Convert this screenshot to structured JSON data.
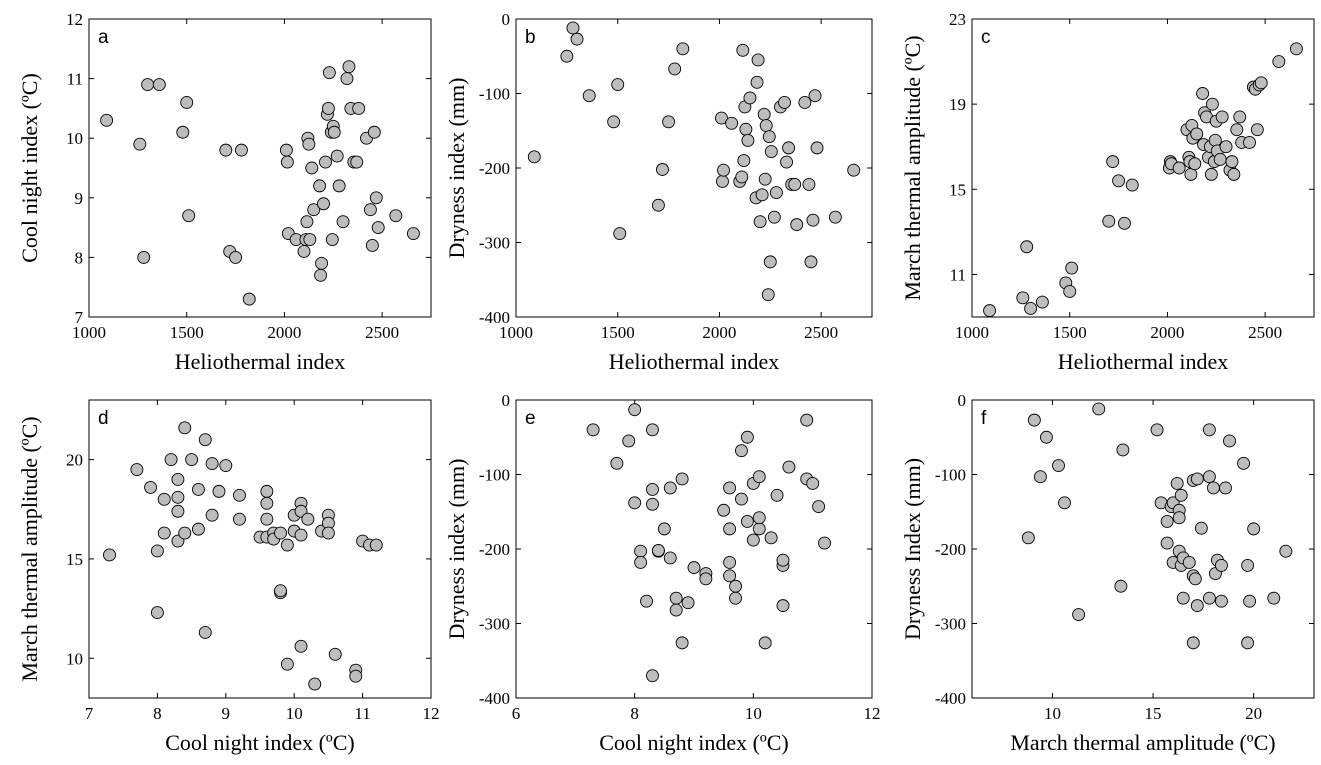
{
  "chart_data": [
    {
      "id": "a",
      "type": "scatter",
      "panel_label": "a",
      "xlabel": "Heliothermal index",
      "ylabel": "Cool night index (ºC)",
      "xlim": [
        1000,
        2750
      ],
      "ylim": [
        7,
        12
      ],
      "xticks": [
        1000,
        1500,
        2000,
        2500
      ],
      "yticks": [
        7,
        8,
        9,
        10,
        11,
        12
      ],
      "points": [
        [
          1090,
          10.3
        ],
        [
          1260,
          9.9
        ],
        [
          1280,
          8.0
        ],
        [
          1300,
          10.9
        ],
        [
          1360,
          10.9
        ],
        [
          1480,
          10.1
        ],
        [
          1500,
          10.6
        ],
        [
          1510,
          8.7
        ],
        [
          1700,
          9.8
        ],
        [
          1720,
          8.1
        ],
        [
          1750,
          8.0
        ],
        [
          1780,
          9.8
        ],
        [
          1820,
          7.3
        ],
        [
          2010,
          9.8
        ],
        [
          2015,
          9.6
        ],
        [
          2020,
          8.4
        ],
        [
          2060,
          8.3
        ],
        [
          2100,
          8.1
        ],
        [
          2110,
          8.3
        ],
        [
          2115,
          8.6
        ],
        [
          2120,
          10.0
        ],
        [
          2125,
          9.9
        ],
        [
          2130,
          8.3
        ],
        [
          2140,
          9.5
        ],
        [
          2150,
          8.8
        ],
        [
          2180,
          9.2
        ],
        [
          2185,
          7.7
        ],
        [
          2190,
          7.9
        ],
        [
          2200,
          8.9
        ],
        [
          2210,
          9.6
        ],
        [
          2220,
          10.4
        ],
        [
          2225,
          10.5
        ],
        [
          2230,
          11.1
        ],
        [
          2240,
          10.1
        ],
        [
          2245,
          8.3
        ],
        [
          2250,
          10.2
        ],
        [
          2255,
          10.1
        ],
        [
          2270,
          9.7
        ],
        [
          2280,
          9.2
        ],
        [
          2300,
          8.6
        ],
        [
          2320,
          11.0
        ],
        [
          2330,
          11.2
        ],
        [
          2340,
          10.5
        ],
        [
          2355,
          9.6
        ],
        [
          2370,
          9.6
        ],
        [
          2380,
          10.5
        ],
        [
          2420,
          10.0
        ],
        [
          2440,
          8.8
        ],
        [
          2450,
          8.2
        ],
        [
          2460,
          10.1
        ],
        [
          2470,
          9.0
        ],
        [
          2480,
          8.5
        ],
        [
          2570,
          8.7
        ],
        [
          2660,
          8.4
        ]
      ]
    },
    {
      "id": "b",
      "type": "scatter",
      "panel_label": "b",
      "xlabel": "Heliothermal index",
      "ylabel": "Dryness index (mm)",
      "xlim": [
        1000,
        2750
      ],
      "ylim": [
        -400,
        0
      ],
      "xticks": [
        1000,
        1500,
        2000,
        2500
      ],
      "yticks": [
        -400,
        -300,
        -200,
        -100,
        0
      ],
      "points": [
        [
          1090,
          -185
        ],
        [
          1250,
          -50
        ],
        [
          1280,
          -12
        ],
        [
          1300,
          -27
        ],
        [
          1360,
          -103
        ],
        [
          1480,
          -138
        ],
        [
          1500,
          -88
        ],
        [
          1510,
          -288
        ],
        [
          1700,
          -250
        ],
        [
          1720,
          -202
        ],
        [
          1750,
          -138
        ],
        [
          1780,
          -67
        ],
        [
          1820,
          -40
        ],
        [
          2010,
          -133
        ],
        [
          2015,
          -218
        ],
        [
          2020,
          -203
        ],
        [
          2060,
          -140
        ],
        [
          2100,
          -218
        ],
        [
          2110,
          -212
        ],
        [
          2115,
          -42
        ],
        [
          2120,
          -190
        ],
        [
          2125,
          -118
        ],
        [
          2130,
          -148
        ],
        [
          2140,
          -163
        ],
        [
          2150,
          -106
        ],
        [
          2180,
          -240
        ],
        [
          2185,
          -85
        ],
        [
          2190,
          -55
        ],
        [
          2200,
          -272
        ],
        [
          2210,
          -236
        ],
        [
          2220,
          -128
        ],
        [
          2225,
          -215
        ],
        [
          2230,
          -143
        ],
        [
          2240,
          -370
        ],
        [
          2245,
          -158
        ],
        [
          2250,
          -326
        ],
        [
          2255,
          -178
        ],
        [
          2270,
          -266
        ],
        [
          2280,
          -233
        ],
        [
          2300,
          -118
        ],
        [
          2320,
          -112
        ],
        [
          2330,
          -192
        ],
        [
          2340,
          -173
        ],
        [
          2355,
          -222
        ],
        [
          2370,
          -222
        ],
        [
          2380,
          -276
        ],
        [
          2420,
          -112
        ],
        [
          2440,
          -222
        ],
        [
          2450,
          -326
        ],
        [
          2460,
          -270
        ],
        [
          2470,
          -103
        ],
        [
          2480,
          -173
        ],
        [
          2570,
          -266
        ],
        [
          2660,
          -203
        ]
      ]
    },
    {
      "id": "c",
      "type": "scatter",
      "panel_label": "c",
      "xlabel": "Heliothermal index",
      "ylabel": "March thermal amplitude (ºC)",
      "xlim": [
        1000,
        2750
      ],
      "ylim": [
        9,
        23
      ],
      "xticks": [
        1000,
        1500,
        2000,
        2500
      ],
      "yticks": [
        11,
        15,
        19,
        23
      ],
      "points": [
        [
          1090,
          9.3
        ],
        [
          1260,
          9.9
        ],
        [
          1280,
          12.3
        ],
        [
          1300,
          9.4
        ],
        [
          1360,
          9.7
        ],
        [
          1480,
          10.6
        ],
        [
          1500,
          10.2
        ],
        [
          1510,
          11.3
        ],
        [
          1700,
          13.5
        ],
        [
          1720,
          16.3
        ],
        [
          1750,
          15.4
        ],
        [
          1780,
          13.4
        ],
        [
          1820,
          15.2
        ],
        [
          2010,
          16.0
        ],
        [
          2015,
          16.3
        ],
        [
          2020,
          16.2
        ],
        [
          2060,
          16.0
        ],
        [
          2100,
          17.8
        ],
        [
          2110,
          16.5
        ],
        [
          2115,
          16.3
        ],
        [
          2120,
          15.7
        ],
        [
          2125,
          18.0
        ],
        [
          2130,
          17.4
        ],
        [
          2140,
          16.2
        ],
        [
          2150,
          17.6
        ],
        [
          2180,
          19.5
        ],
        [
          2185,
          17.1
        ],
        [
          2190,
          18.6
        ],
        [
          2200,
          18.4
        ],
        [
          2210,
          16.5
        ],
        [
          2220,
          17.0
        ],
        [
          2225,
          15.7
        ],
        [
          2230,
          19.0
        ],
        [
          2240,
          16.3
        ],
        [
          2245,
          17.3
        ],
        [
          2250,
          18.2
        ],
        [
          2255,
          16.8
        ],
        [
          2270,
          16.4
        ],
        [
          2280,
          18.4
        ],
        [
          2300,
          17.0
        ],
        [
          2320,
          15.9
        ],
        [
          2330,
          16.3
        ],
        [
          2340,
          15.7
        ],
        [
          2355,
          17.8
        ],
        [
          2370,
          18.4
        ],
        [
          2380,
          17.2
        ],
        [
          2420,
          17.2
        ],
        [
          2440,
          19.8
        ],
        [
          2450,
          19.7
        ],
        [
          2460,
          17.8
        ],
        [
          2470,
          19.9
        ],
        [
          2480,
          20.0
        ],
        [
          2570,
          21.0
        ],
        [
          2660,
          21.6
        ]
      ]
    },
    {
      "id": "d",
      "type": "scatter",
      "panel_label": "d",
      "xlabel": "Cool night index (ºC)",
      "ylabel": "March thermal amplitude (ºC)",
      "xlim": [
        7,
        12
      ],
      "ylim": [
        8,
        23
      ],
      "xticks": [
        7,
        8,
        9,
        10,
        11,
        12
      ],
      "yticks": [
        10,
        15,
        20
      ],
      "points": [
        [
          7.3,
          15.2
        ],
        [
          7.7,
          19.5
        ],
        [
          7.9,
          18.6
        ],
        [
          8.0,
          15.4
        ],
        [
          8.0,
          12.3
        ],
        [
          8.1,
          18.0
        ],
        [
          8.1,
          16.3
        ],
        [
          8.2,
          20.0
        ],
        [
          8.3,
          15.9
        ],
        [
          8.3,
          17.4
        ],
        [
          8.3,
          18.1
        ],
        [
          8.3,
          19.0
        ],
        [
          8.4,
          21.6
        ],
        [
          8.4,
          16.3
        ],
        [
          8.5,
          20.0
        ],
        [
          8.6,
          18.5
        ],
        [
          8.6,
          16.5
        ],
        [
          8.7,
          11.3
        ],
        [
          8.7,
          21.0
        ],
        [
          8.8,
          19.8
        ],
        [
          8.8,
          17.2
        ],
        [
          8.9,
          18.4
        ],
        [
          9.0,
          19.7
        ],
        [
          9.2,
          18.2
        ],
        [
          9.2,
          17.0
        ],
        [
          9.5,
          16.1
        ],
        [
          9.6,
          18.4
        ],
        [
          9.6,
          17.8
        ],
        [
          9.6,
          17.0
        ],
        [
          9.6,
          16.1
        ],
        [
          9.7,
          16.3
        ],
        [
          9.7,
          16.0
        ],
        [
          9.8,
          13.3
        ],
        [
          9.8,
          13.4
        ],
        [
          9.8,
          16.3
        ],
        [
          9.9,
          15.7
        ],
        [
          9.9,
          9.7
        ],
        [
          10.0,
          17.2
        ],
        [
          10.0,
          16.4
        ],
        [
          10.1,
          17.8
        ],
        [
          10.1,
          17.4
        ],
        [
          10.1,
          16.2
        ],
        [
          10.1,
          10.6
        ],
        [
          10.2,
          17.0
        ],
        [
          10.3,
          8.7
        ],
        [
          10.4,
          16.4
        ],
        [
          10.5,
          17.2
        ],
        [
          10.5,
          16.8
        ],
        [
          10.5,
          16.3
        ],
        [
          10.6,
          10.2
        ],
        [
          10.9,
          9.4
        ],
        [
          10.9,
          9.1
        ],
        [
          11.0,
          15.9
        ],
        [
          11.1,
          15.7
        ],
        [
          11.2,
          15.7
        ]
      ]
    },
    {
      "id": "e",
      "type": "scatter",
      "panel_label": "e",
      "xlabel": "Cool night index (ºC)",
      "ylabel": "Dryness index (mm)",
      "xlim": [
        6,
        12
      ],
      "ylim": [
        -400,
        0
      ],
      "xticks": [
        6,
        8,
        10,
        12
      ],
      "yticks": [
        -400,
        -300,
        -200,
        -100,
        0
      ],
      "points": [
        [
          7.3,
          -40
        ],
        [
          7.7,
          -85
        ],
        [
          7.9,
          -55
        ],
        [
          8.0,
          -13
        ],
        [
          8.0,
          -138
        ],
        [
          8.1,
          -203
        ],
        [
          8.1,
          -218
        ],
        [
          8.2,
          -270
        ],
        [
          8.3,
          -370
        ],
        [
          8.3,
          -140
        ],
        [
          8.3,
          -40
        ],
        [
          8.3,
          -120
        ],
        [
          8.4,
          -203
        ],
        [
          8.4,
          -202
        ],
        [
          8.5,
          -173
        ],
        [
          8.6,
          -118
        ],
        [
          8.6,
          -212
        ],
        [
          8.7,
          -266
        ],
        [
          8.7,
          -282
        ],
        [
          8.8,
          -106
        ],
        [
          8.8,
          -326
        ],
        [
          8.9,
          -272
        ],
        [
          9.0,
          -225
        ],
        [
          9.2,
          -233
        ],
        [
          9.2,
          -240
        ],
        [
          9.5,
          -148
        ],
        [
          9.6,
          -118
        ],
        [
          9.6,
          -173
        ],
        [
          9.6,
          -218
        ],
        [
          9.6,
          -236
        ],
        [
          9.7,
          -266
        ],
        [
          9.7,
          -250
        ],
        [
          9.8,
          -133
        ],
        [
          9.8,
          -68
        ],
        [
          9.9,
          -50
        ],
        [
          9.9,
          -163
        ],
        [
          10.0,
          -188
        ],
        [
          10.0,
          -112
        ],
        [
          10.1,
          -173
        ],
        [
          10.1,
          -158
        ],
        [
          10.1,
          -103
        ],
        [
          10.2,
          -326
        ],
        [
          10.3,
          -185
        ],
        [
          10.4,
          -128
        ],
        [
          10.5,
          -222
        ],
        [
          10.5,
          -215
        ],
        [
          10.5,
          -276
        ],
        [
          10.6,
          -90
        ],
        [
          10.9,
          -27
        ],
        [
          10.9,
          -106
        ],
        [
          11.0,
          -112
        ],
        [
          11.1,
          -143
        ],
        [
          11.2,
          -192
        ]
      ]
    },
    {
      "id": "f",
      "type": "scatter",
      "panel_label": "f",
      "xlabel": "March thermal amplitude (ºC)",
      "ylabel": "Dryness Index (mm)",
      "xlim": [
        6,
        23
      ],
      "ylim": [
        -400,
        0
      ],
      "xticks": [
        10,
        15,
        20
      ],
      "yticks": [
        -400,
        -300,
        -200,
        -100,
        0
      ],
      "points": [
        [
          8.8,
          -185
        ],
        [
          9.1,
          -27
        ],
        [
          9.4,
          -103
        ],
        [
          9.7,
          -50
        ],
        [
          10.3,
          -88
        ],
        [
          10.6,
          -138
        ],
        [
          11.3,
          -288
        ],
        [
          12.3,
          -12
        ],
        [
          13.4,
          -250
        ],
        [
          13.5,
          -67
        ],
        [
          15.2,
          -40
        ],
        [
          15.4,
          -138
        ],
        [
          15.7,
          -192
        ],
        [
          15.7,
          -163
        ],
        [
          15.9,
          -143
        ],
        [
          16.0,
          -218
        ],
        [
          16.0,
          -138
        ],
        [
          16.2,
          -112
        ],
        [
          16.3,
          -148
        ],
        [
          16.3,
          -158
        ],
        [
          16.3,
          -203
        ],
        [
          16.4,
          -128
        ],
        [
          16.4,
          -222
        ],
        [
          16.5,
          -212
        ],
        [
          16.5,
          -266
        ],
        [
          16.8,
          -218
        ],
        [
          17.0,
          -236
        ],
        [
          17.0,
          -326
        ],
        [
          17.0,
          -108
        ],
        [
          17.1,
          -240
        ],
        [
          17.2,
          -276
        ],
        [
          17.2,
          -106
        ],
        [
          17.4,
          -172
        ],
        [
          17.8,
          -40
        ],
        [
          17.8,
          -103
        ],
        [
          17.8,
          -266
        ],
        [
          18.0,
          -118
        ],
        [
          18.1,
          -233
        ],
        [
          18.2,
          -215
        ],
        [
          18.4,
          -222
        ],
        [
          18.4,
          -270
        ],
        [
          18.6,
          -118
        ],
        [
          18.8,
          -55
        ],
        [
          19.5,
          -85
        ],
        [
          19.7,
          -326
        ],
        [
          19.7,
          -222
        ],
        [
          19.8,
          -270
        ],
        [
          20.0,
          -173
        ],
        [
          21.0,
          -266
        ],
        [
          21.6,
          -203
        ]
      ]
    }
  ]
}
